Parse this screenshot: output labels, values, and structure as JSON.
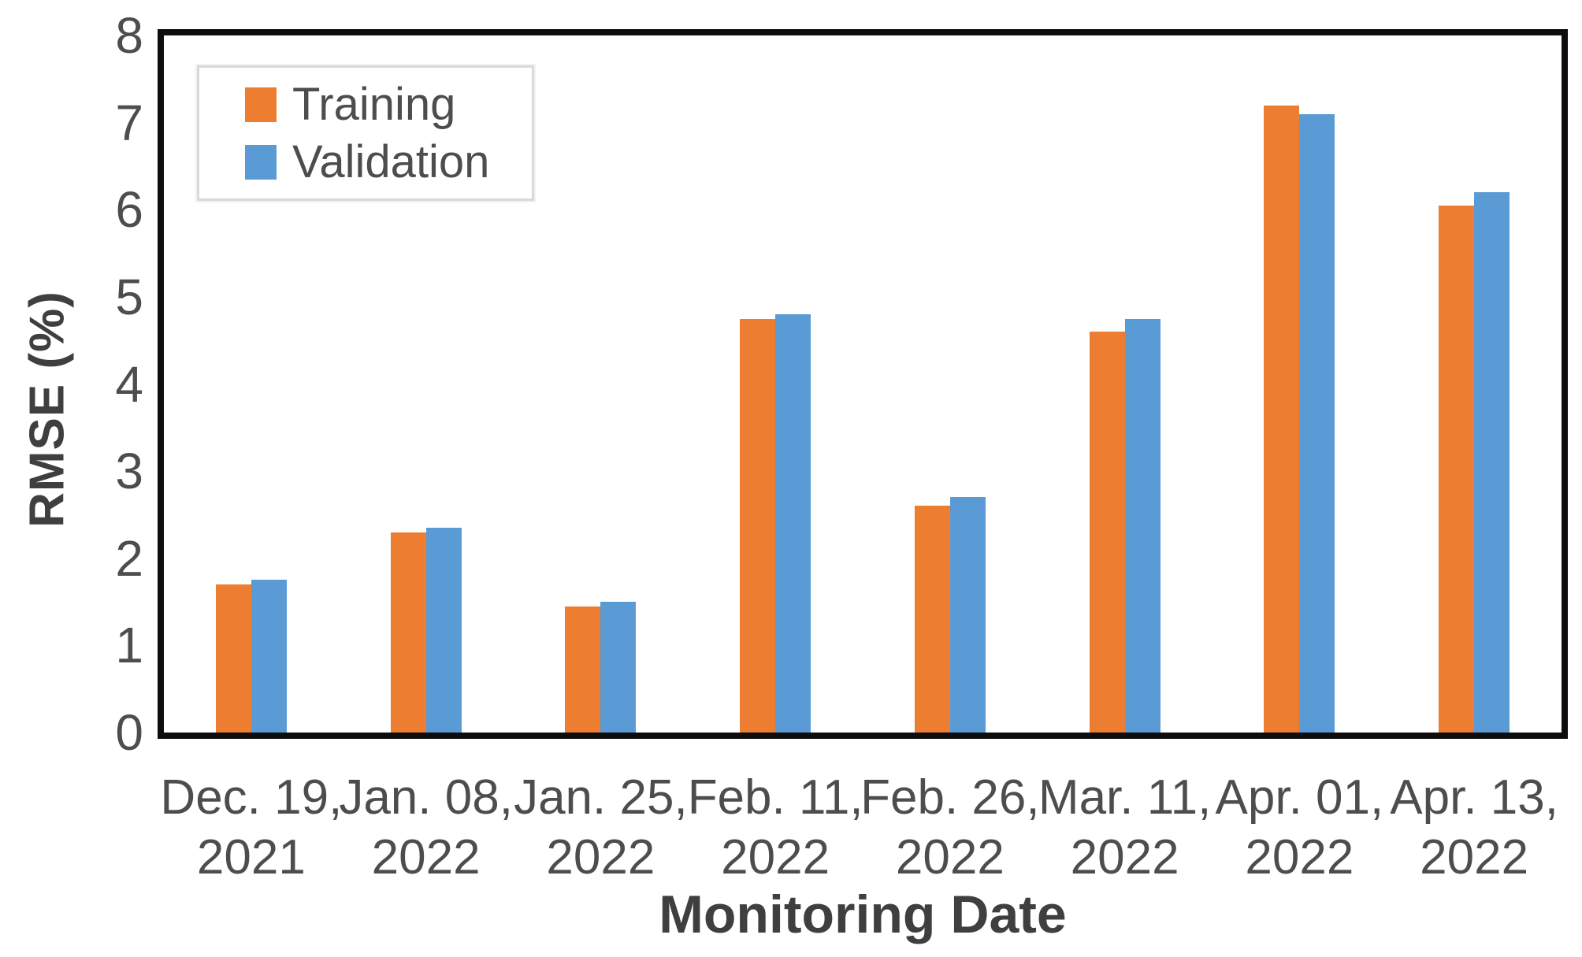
{
  "chart_data": {
    "type": "bar",
    "title": "",
    "xlabel": "Monitoring Date",
    "ylabel": "RMSE (%)",
    "ylim": [
      0,
      8
    ],
    "yticks": [
      0,
      1,
      2,
      3,
      4,
      5,
      6,
      7,
      8
    ],
    "grid": false,
    "legend_position": "top-left",
    "categories": [
      {
        "line1": "Dec. 19,",
        "line2": "2021"
      },
      {
        "line1": "Jan. 08,",
        "line2": "2022"
      },
      {
        "line1": "Jan. 25,",
        "line2": "2022"
      },
      {
        "line1": "Feb. 11,",
        "line2": "2022"
      },
      {
        "line1": "Feb. 26,",
        "line2": "2022"
      },
      {
        "line1": "Mar. 11,",
        "line2": "2022"
      },
      {
        "line1": "Apr. 01,",
        "line2": "2022"
      },
      {
        "line1": "Apr. 13,",
        "line2": "2022"
      }
    ],
    "series": [
      {
        "name": "Training",
        "color": "#ED7D31",
        "values": [
          1.7,
          2.3,
          1.45,
          4.75,
          2.6,
          4.6,
          7.2,
          6.05
        ]
      },
      {
        "name": "Validation",
        "color": "#5B9BD5",
        "values": [
          1.75,
          2.35,
          1.5,
          4.8,
          2.7,
          4.75,
          7.1,
          6.2
        ]
      }
    ]
  },
  "colors": {
    "background": "#ffffff",
    "axis_border": "#0d0d0d",
    "tick_text": "#4d4d4d",
    "title_text": "#3f3f3f",
    "legend_border": "#d9d9d9",
    "training": "#ED7D31",
    "validation": "#5B9BD5"
  }
}
